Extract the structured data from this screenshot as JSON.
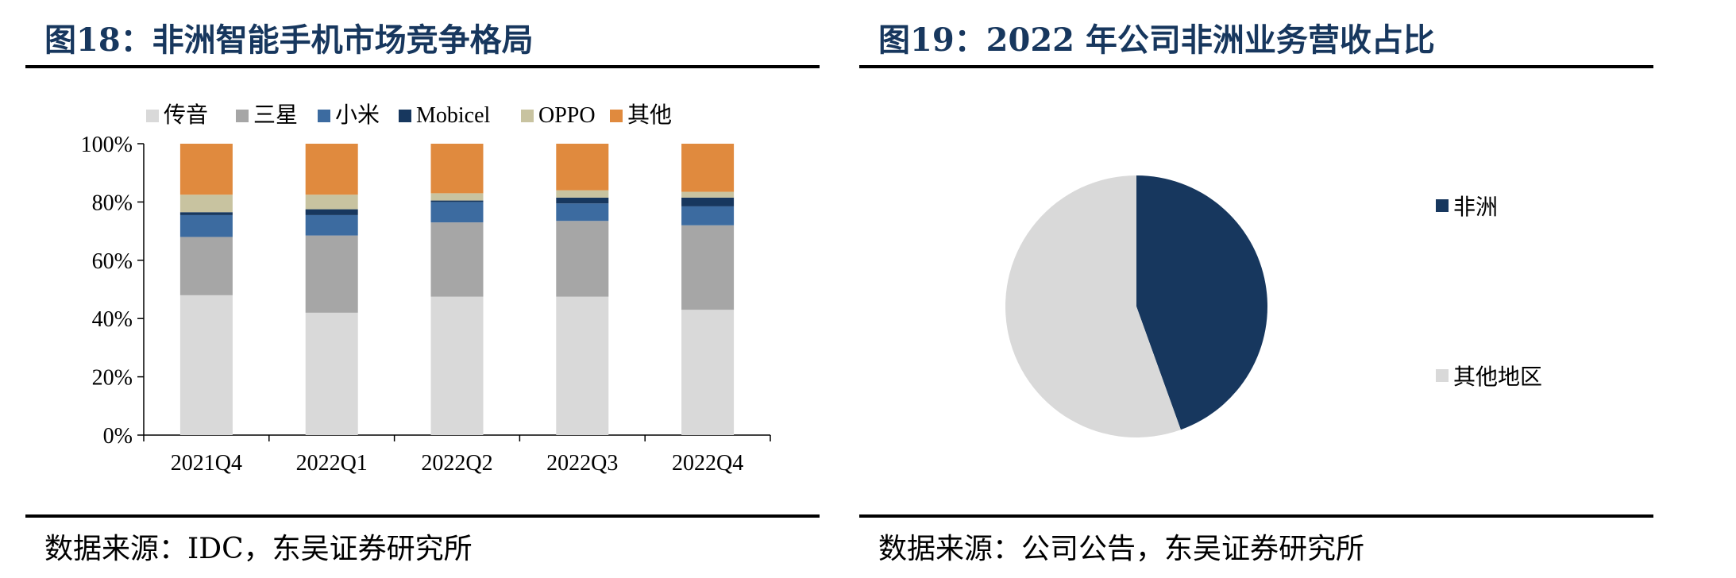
{
  "left": {
    "title": "图18：非洲智能手机市场竞争格局",
    "source": "数据来源：IDC，东吴证券研究所"
  },
  "right": {
    "title": "图19：2022 年公司非洲业务营收占比",
    "source": "数据来源：公司公告，东吴证券研究所"
  },
  "chart_data": [
    {
      "type": "bar",
      "stacked": true,
      "title": "",
      "xlabel": "",
      "ylabel": "",
      "ylim": [
        0,
        100
      ],
      "y_tick_labels": [
        "0%",
        "20%",
        "40%",
        "60%",
        "80%",
        "100%"
      ],
      "categories": [
        "2021Q4",
        "2022Q1",
        "2022Q2",
        "2022Q3",
        "2022Q4"
      ],
      "legend_position": "top",
      "series": [
        {
          "name": "传音",
          "color": "#d9d9d9",
          "values": [
            48,
            42,
            47.5,
            47.5,
            43
          ]
        },
        {
          "name": "三星",
          "color": "#a6a6a6",
          "values": [
            20,
            26.5,
            25.5,
            26,
            29
          ]
        },
        {
          "name": "小米",
          "color": "#3c6ba0",
          "values": [
            7.5,
            7,
            7,
            6,
            6.5
          ]
        },
        {
          "name": "Mobicel",
          "color": "#17375e",
          "values": [
            1,
            2,
            0.5,
            2,
            3
          ]
        },
        {
          "name": "OPPO",
          "color": "#c8c3a0",
          "values": [
            6,
            5,
            2.5,
            2.5,
            2
          ]
        },
        {
          "name": "其他",
          "color": "#e08a3e",
          "values": [
            17.5,
            17.5,
            17,
            16,
            16.5
          ]
        }
      ]
    },
    {
      "type": "pie",
      "title": "",
      "start_angle": "12 o'clock, clockwise",
      "legend_position": "right",
      "slices": [
        {
          "name": "非洲",
          "color": "#17375e",
          "value": 44.5
        },
        {
          "name": "其他地区",
          "color": "#d9d9d9",
          "value": 55.5
        }
      ]
    }
  ]
}
